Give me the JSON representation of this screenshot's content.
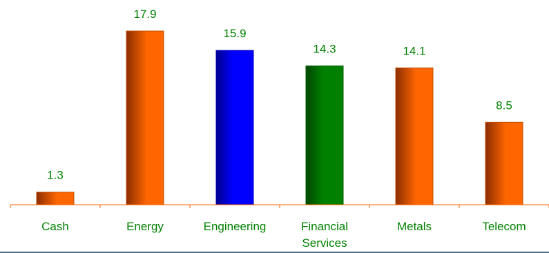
{
  "chart_data": {
    "type": "bar",
    "categories": [
      "Cash",
      "Energy",
      "Engineering",
      "Financial Services",
      "Metals",
      "Telecom"
    ],
    "category_lines": [
      [
        "Cash"
      ],
      [
        "Energy"
      ],
      [
        "Engineering"
      ],
      [
        "Financial",
        "Services"
      ],
      [
        "Metals"
      ],
      [
        "Telecom"
      ]
    ],
    "values": [
      1.3,
      17.9,
      15.9,
      14.3,
      14.1,
      8.5
    ],
    "value_labels": [
      "1.3",
      "17.9",
      "15.9",
      "14.3",
      "14.1",
      "8.5"
    ],
    "bar_colors": [
      "#ff6600",
      "#ff6600",
      "#0000ff",
      "#008000",
      "#ff6600",
      "#ff6600"
    ],
    "label_color": "#008000",
    "axis_color": "#ff6600",
    "ylim": [
      0,
      17.9
    ],
    "title": "",
    "xlabel": "",
    "ylabel": "",
    "grid": false,
    "legend": false
  }
}
